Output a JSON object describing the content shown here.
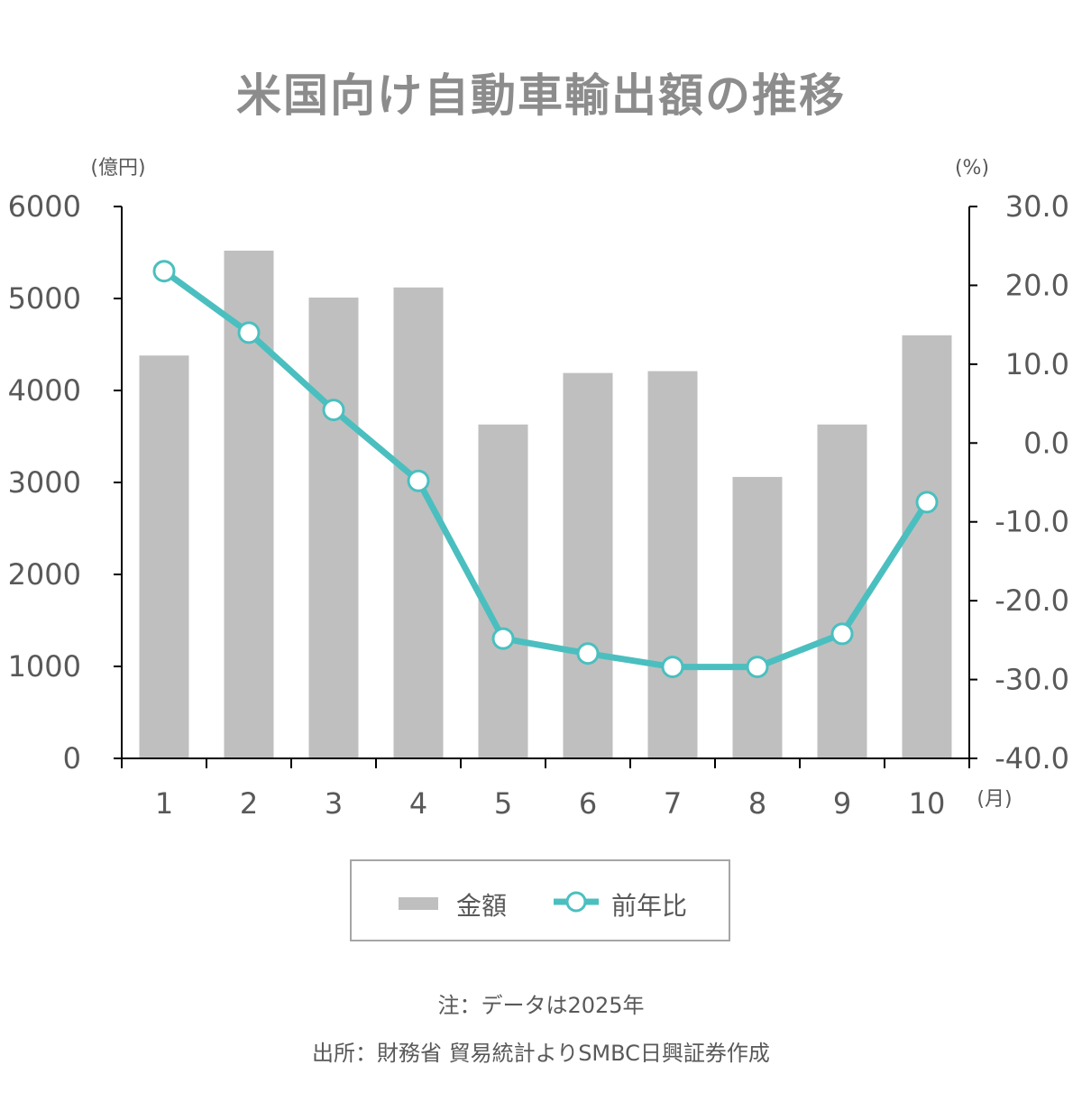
{
  "title": "米国向け自動車輸出額の推移",
  "chart_data": {
    "type": "bar+line",
    "title": "米国向け自動車輸出額の推移",
    "categories": [
      "1",
      "2",
      "3",
      "4",
      "5",
      "6",
      "7",
      "8",
      "9",
      "10"
    ],
    "x_unit": "(月)",
    "series": [
      {
        "name": "金額",
        "type": "bar",
        "axis": "left",
        "color": "#bfbfbf",
        "values": [
          4380,
          5520,
          5010,
          5120,
          3630,
          4190,
          4210,
          3060,
          3630,
          4600
        ]
      },
      {
        "name": "前年比",
        "type": "line",
        "axis": "right",
        "color": "#4bbfbf",
        "values": [
          21.8,
          14.0,
          4.2,
          -4.8,
          -24.8,
          -26.7,
          -28.4,
          -28.4,
          -24.2,
          -7.5
        ]
      }
    ],
    "left_axis": {
      "unit": "(億円)",
      "min": 0,
      "max": 6000,
      "step": 1000,
      "ticks": [
        "0",
        "1000",
        "2000",
        "3000",
        "4000",
        "5000",
        "6000"
      ]
    },
    "right_axis": {
      "unit": "(%)",
      "min": -40,
      "max": 30,
      "step": 10,
      "ticks": [
        "-40.0",
        "-30.0",
        "-20.0",
        "-10.0",
        "0.0",
        "10.0",
        "20.0",
        "30.0"
      ]
    },
    "legend": [
      "金額",
      "前年比"
    ],
    "legend_position": "bottom",
    "grid": false
  },
  "legend": {
    "bar_label": "金額",
    "line_label": "前年比"
  },
  "notes": {
    "note": "注：データは2025年",
    "source": "出所：財務省 貿易統計よりSMBC日興証券作成"
  },
  "colors": {
    "bar": "#bfbfbf",
    "line": "#4bbfbf",
    "title": "#8c8c8c",
    "text": "#595959"
  }
}
